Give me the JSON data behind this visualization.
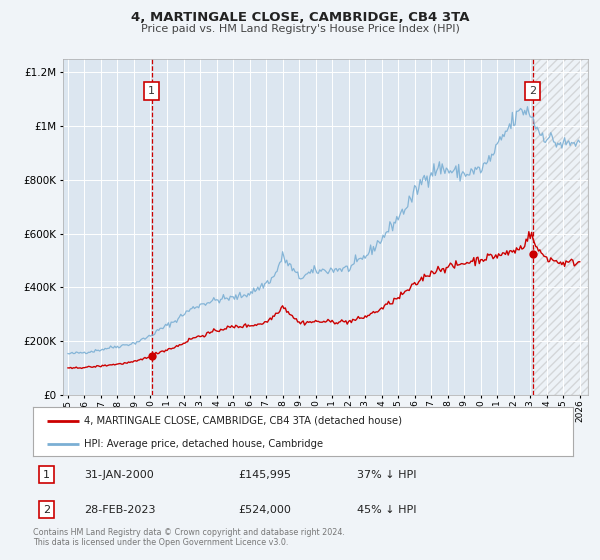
{
  "title": "4, MARTINGALE CLOSE, CAMBRIDGE, CB4 3TA",
  "subtitle": "Price paid vs. HM Land Registry's House Price Index (HPI)",
  "background_color": "#f0f4f8",
  "plot_bg_color": "#dce6f0",
  "grid_color": "#ffffff",
  "ylim": [
    0,
    1250000
  ],
  "xlim_start": 1994.7,
  "xlim_end": 2026.5,
  "ytick_values": [
    0,
    200000,
    400000,
    600000,
    800000,
    1000000,
    1200000
  ],
  "sale1_x": 2000.08,
  "sale1_y": 145995,
  "sale2_x": 2023.16,
  "sale2_y": 524000,
  "sale_color": "#cc0000",
  "hpi_color": "#7bafd4",
  "vline1_color": "#cc0000",
  "vline2_color": "#cc0000",
  "legend_label_sale": "4, MARTINGALE CLOSE, CAMBRIDGE, CB4 3TA (detached house)",
  "legend_label_hpi": "HPI: Average price, detached house, Cambridge",
  "table_row1": [
    "1",
    "31-JAN-2000",
    "£145,995",
    "37% ↓ HPI"
  ],
  "table_row2": [
    "2",
    "28-FEB-2023",
    "£524,000",
    "45% ↓ HPI"
  ],
  "footer1": "Contains HM Land Registry data © Crown copyright and database right 2024.",
  "footer2": "This data is licensed under the Open Government Licence v3.0.",
  "hpi_anchors": {
    "1995.0": 152000,
    "1995.5": 155000,
    "1996.0": 158000,
    "1996.5": 162000,
    "1997.0": 168000,
    "1997.5": 175000,
    "1998.0": 180000,
    "1998.5": 186000,
    "1999.0": 192000,
    "1999.5": 205000,
    "2000.0": 220000,
    "2000.5": 240000,
    "2001.0": 258000,
    "2001.5": 275000,
    "2002.0": 300000,
    "2002.5": 320000,
    "2003.0": 335000,
    "2003.5": 345000,
    "2004.0": 352000,
    "2004.5": 358000,
    "2005.0": 360000,
    "2005.5": 368000,
    "2006.0": 378000,
    "2006.5": 395000,
    "2007.0": 415000,
    "2007.5": 440000,
    "2008.0": 515000,
    "2008.5": 475000,
    "2009.0": 435000,
    "2009.5": 448000,
    "2010.0": 460000,
    "2010.5": 462000,
    "2011.0": 465000,
    "2011.5": 468000,
    "2012.0": 470000,
    "2012.5": 490000,
    "2013.0": 515000,
    "2013.5": 545000,
    "2014.0": 580000,
    "2014.5": 620000,
    "2015.0": 660000,
    "2015.5": 700000,
    "2016.0": 750000,
    "2016.5": 800000,
    "2017.0": 830000,
    "2017.5": 845000,
    "2018.0": 835000,
    "2018.5": 828000,
    "2019.0": 820000,
    "2019.5": 830000,
    "2020.0": 838000,
    "2020.5": 870000,
    "2021.0": 920000,
    "2021.5": 975000,
    "2022.0": 1020000,
    "2022.5": 1060000,
    "2023.0": 1050000,
    "2023.5": 980000,
    "2024.0": 960000,
    "2024.5": 940000,
    "2025.0": 930000,
    "2025.5": 935000,
    "2026.0": 940000
  },
  "sale_anchors": {
    "1995.0": 98000,
    "1995.5": 100000,
    "1996.0": 102000,
    "1996.5": 104000,
    "1997.0": 107000,
    "1997.5": 111000,
    "1998.0": 114000,
    "1998.5": 118000,
    "1999.0": 122000,
    "1999.5": 132000,
    "2000.0": 146000,
    "2000.5": 158000,
    "2001.0": 168000,
    "2001.5": 178000,
    "2002.0": 192000,
    "2002.5": 210000,
    "2003.0": 218000,
    "2003.5": 228000,
    "2004.0": 238000,
    "2004.5": 248000,
    "2005.0": 252000,
    "2005.5": 255000,
    "2006.0": 258000,
    "2006.5": 262000,
    "2007.0": 270000,
    "2007.5": 295000,
    "2008.0": 330000,
    "2008.5": 300000,
    "2009.0": 268000,
    "2009.5": 270000,
    "2010.0": 272000,
    "2010.5": 272000,
    "2011.0": 272000,
    "2011.5": 272000,
    "2012.0": 272000,
    "2012.5": 280000,
    "2013.0": 290000,
    "2013.5": 305000,
    "2014.0": 320000,
    "2014.5": 342000,
    "2015.0": 360000,
    "2015.5": 385000,
    "2016.0": 408000,
    "2016.5": 435000,
    "2017.0": 455000,
    "2017.5": 468000,
    "2018.0": 475000,
    "2018.5": 480000,
    "2019.0": 490000,
    "2019.5": 498000,
    "2020.0": 505000,
    "2020.5": 512000,
    "2021.0": 518000,
    "2021.5": 525000,
    "2022.0": 535000,
    "2022.5": 548000,
    "2023.0": 600000,
    "2023.5": 535000,
    "2024.0": 510000,
    "2024.5": 498000,
    "2025.0": 490000,
    "2025.5": 492000,
    "2026.0": 495000
  }
}
